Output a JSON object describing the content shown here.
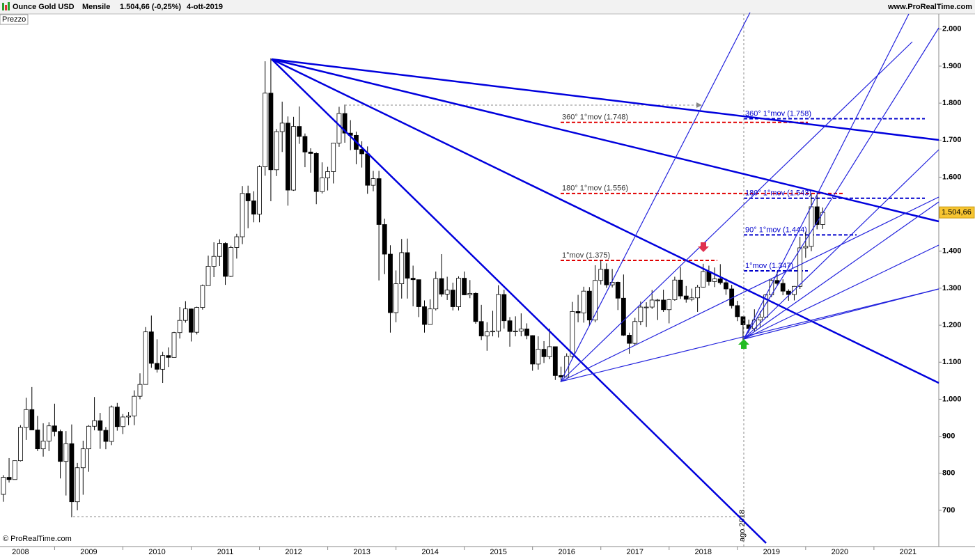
{
  "header": {
    "title": "Ounce Gold USD",
    "period": "Mensile",
    "quote": "1.504,66 (-0,25%)",
    "date": "4-ott-2019",
    "site": "www.ProRealTime.com"
  },
  "panel_label": "Prezzo",
  "copyright": "© ProRealTime.com",
  "marker_label": "ago 2018",
  "chart_data": {
    "type": "candlestick",
    "x": [
      2007.75,
      2007.833,
      2007.917,
      2008,
      2008.083,
      2008.167,
      2008.25,
      2008.333,
      2008.417,
      2008.5,
      2008.583,
      2008.667,
      2008.75,
      2008.833,
      2008.917,
      2009,
      2009.083,
      2009.167,
      2009.25,
      2009.333,
      2009.417,
      2009.5,
      2009.583,
      2009.667,
      2009.75,
      2009.833,
      2009.917,
      2010,
      2010.083,
      2010.167,
      2010.25,
      2010.333,
      2010.417,
      2010.5,
      2010.583,
      2010.667,
      2010.75,
      2010.833,
      2010.917,
      2011,
      2011.083,
      2011.167,
      2011.25,
      2011.333,
      2011.417,
      2011.5,
      2011.583,
      2011.667,
      2011.75,
      2011.833,
      2011.917,
      2012,
      2012.083,
      2012.167,
      2012.25,
      2012.333,
      2012.417,
      2012.5,
      2012.583,
      2012.667,
      2012.75,
      2012.833,
      2012.917,
      2013,
      2013.083,
      2013.167,
      2013.25,
      2013.333,
      2013.417,
      2013.5,
      2013.583,
      2013.667,
      2013.75,
      2013.833,
      2013.917,
      2014,
      2014.083,
      2014.167,
      2014.25,
      2014.333,
      2014.417,
      2014.5,
      2014.583,
      2014.667,
      2014.75,
      2014.833,
      2014.917,
      2015,
      2015.083,
      2015.167,
      2015.25,
      2015.333,
      2015.417,
      2015.5,
      2015.583,
      2015.667,
      2015.75,
      2015.833,
      2015.917,
      2016,
      2016.083,
      2016.167,
      2016.25,
      2016.333,
      2016.417,
      2016.5,
      2016.583,
      2016.667,
      2016.75,
      2016.833,
      2016.917,
      2017,
      2017.083,
      2017.167,
      2017.25,
      2017.333,
      2017.417,
      2017.5,
      2017.583,
      2017.667,
      2017.75,
      2017.833,
      2017.917,
      2018,
      2018.083,
      2018.167,
      2018.25,
      2018.333,
      2018.417,
      2018.5,
      2018.583,
      2018.667,
      2018.75,
      2018.833,
      2018.917,
      2019,
      2019.083,
      2019.167,
      2019.25,
      2019.333,
      2019.417,
      2019.5,
      2019.583,
      2019.667,
      2019.75
    ],
    "open": [
      743,
      789,
      783,
      834,
      924,
      972,
      917,
      866,
      887,
      928,
      913,
      832,
      880,
      723,
      815,
      866,
      927,
      942,
      916,
      886,
      979,
      926,
      952,
      955,
      1008,
      1040,
      1182,
      1097,
      1081,
      1118,
      1113,
      1180,
      1213,
      1244,
      1181,
      1248,
      1307,
      1359,
      1386,
      1421,
      1332,
      1410,
      1439,
      1556,
      1536,
      1500,
      1628,
      1827,
      1620,
      1723,
      1746,
      1565,
      1737,
      1710,
      1668,
      1664,
      1561,
      1598,
      1615,
      1692,
      1772,
      1719,
      1713,
      1675,
      1663,
      1578,
      1596,
      1472,
      1392,
      1234,
      1312,
      1396,
      1327,
      1323,
      1250,
      1202,
      1244,
      1326,
      1284,
      1295,
      1250,
      1327,
      1282,
      1286,
      1210,
      1171,
      1182,
      1184,
      1283,
      1212,
      1183,
      1184,
      1190,
      1172,
      1095,
      1135,
      1115,
      1142,
      1064,
      1060,
      1116,
      1237,
      1233,
      1292,
      1214,
      1321,
      1351,
      1309,
      1316,
      1273,
      1173,
      1151,
      1210,
      1249,
      1249,
      1268,
      1268,
      1242,
      1269,
      1322,
      1279,
      1270,
      1274,
      1303,
      1345,
      1318,
      1325,
      1315,
      1298,
      1253,
      1223,
      1201,
      1191,
      1214,
      1222,
      1282,
      1321,
      1313,
      1292,
      1283,
      1305,
      1409,
      1413,
      1520,
      1472
    ],
    "high": [
      795,
      841,
      834,
      930,
      1004,
      1033,
      955,
      935,
      938,
      988,
      918,
      914,
      932,
      828,
      888,
      930,
      1006,
      963,
      925,
      983,
      990,
      960,
      965,
      1024,
      1070,
      1195,
      1226,
      1162,
      1128,
      1140,
      1182,
      1249,
      1265,
      1245,
      1250,
      1310,
      1388,
      1424,
      1432,
      1424,
      1415,
      1447,
      1576,
      1577,
      1562,
      1632,
      1913,
      1921,
      1730,
      1804,
      1764,
      1763,
      1791,
      1718,
      1678,
      1667,
      1640,
      1628,
      1693,
      1790,
      1796,
      1754,
      1723,
      1697,
      1683,
      1617,
      1617,
      1488,
      1416,
      1348,
      1433,
      1434,
      1361,
      1322,
      1267,
      1270,
      1345,
      1392,
      1331,
      1315,
      1332,
      1345,
      1322,
      1289,
      1255,
      1208,
      1239,
      1308,
      1296,
      1222,
      1224,
      1232,
      1205,
      1173,
      1170,
      1157,
      1191,
      1142,
      1088,
      1124,
      1263,
      1282,
      1304,
      1303,
      1362,
      1375,
      1367,
      1352,
      1318,
      1337,
      1180,
      1220,
      1264,
      1262,
      1295,
      1271,
      1296,
      1271,
      1331,
      1357,
      1306,
      1299,
      1309,
      1366,
      1361,
      1356,
      1365,
      1326,
      1309,
      1266,
      1224,
      1215,
      1243,
      1237,
      1284,
      1326,
      1346,
      1324,
      1297,
      1306,
      1439,
      1453,
      1555,
      1557,
      1518
    ],
    "low": [
      723,
      775,
      784,
      832,
      890,
      920,
      860,
      845,
      860,
      900,
      786,
      740,
      681,
      700,
      742,
      804,
      916,
      866,
      865,
      876,
      915,
      906,
      930,
      930,
      1000,
      1040,
      1085,
      1072,
      1044,
      1087,
      1115,
      1164,
      1207,
      1156,
      1175,
      1242,
      1313,
      1330,
      1360,
      1309,
      1330,
      1380,
      1419,
      1462,
      1478,
      1478,
      1604,
      1535,
      1603,
      1668,
      1523,
      1563,
      1690,
      1627,
      1612,
      1527,
      1556,
      1564,
      1583,
      1682,
      1693,
      1673,
      1635,
      1626,
      1555,
      1562,
      1321,
      1338,
      1180,
      1208,
      1272,
      1272,
      1251,
      1222,
      1180,
      1202,
      1240,
      1277,
      1268,
      1240,
      1240,
      1281,
      1273,
      1204,
      1160,
      1131,
      1170,
      1167,
      1191,
      1142,
      1170,
      1170,
      1162,
      1077,
      1080,
      1098,
      1108,
      1052,
      1046,
      1062,
      1108,
      1208,
      1207,
      1199,
      1208,
      1310,
      1301,
      1302,
      1241,
      1171,
      1123,
      1146,
      1200,
      1195,
      1244,
      1214,
      1236,
      1205,
      1266,
      1271,
      1261,
      1265,
      1236,
      1302,
      1307,
      1303,
      1310,
      1282,
      1245,
      1211,
      1160,
      1180,
      1183,
      1196,
      1221,
      1276,
      1308,
      1281,
      1266,
      1267,
      1298,
      1382,
      1400,
      1459,
      1460
    ],
    "close": [
      789,
      783,
      834,
      924,
      972,
      917,
      866,
      887,
      928,
      913,
      832,
      880,
      723,
      815,
      866,
      927,
      942,
      916,
      886,
      979,
      926,
      952,
      955,
      1008,
      1040,
      1182,
      1097,
      1081,
      1118,
      1113,
      1180,
      1213,
      1244,
      1181,
      1248,
      1307,
      1359,
      1386,
      1421,
      1332,
      1410,
      1439,
      1556,
      1536,
      1500,
      1628,
      1827,
      1620,
      1723,
      1746,
      1565,
      1737,
      1710,
      1668,
      1664,
      1561,
      1598,
      1615,
      1692,
      1772,
      1719,
      1713,
      1675,
      1663,
      1578,
      1596,
      1472,
      1392,
      1234,
      1312,
      1396,
      1327,
      1323,
      1250,
      1202,
      1244,
      1326,
      1284,
      1295,
      1250,
      1327,
      1282,
      1286,
      1210,
      1171,
      1182,
      1184,
      1283,
      1212,
      1183,
      1184,
      1190,
      1172,
      1095,
      1135,
      1115,
      1142,
      1064,
      1060,
      1116,
      1237,
      1233,
      1292,
      1214,
      1321,
      1351,
      1309,
      1316,
      1273,
      1173,
      1151,
      1210,
      1249,
      1249,
      1268,
      1268,
      1242,
      1269,
      1322,
      1279,
      1270,
      1274,
      1303,
      1345,
      1318,
      1325,
      1315,
      1298,
      1253,
      1223,
      1201,
      1191,
      1214,
      1222,
      1282,
      1321,
      1313,
      1292,
      1283,
      1305,
      1409,
      1413,
      1520,
      1472,
      1504.66
    ],
    "up_color": "#ffffff",
    "down_color": "#000000",
    "xlim": [
      2007.7,
      2021.45
    ],
    "xticks": [
      2008,
      2009,
      2010,
      2011,
      2012,
      2013,
      2014,
      2015,
      2016,
      2017,
      2018,
      2019,
      2020,
      2021
    ],
    "ylim": [
      602,
      2041
    ],
    "yticks": [
      700,
      800,
      900,
      {
        "value": 1000,
        "label": "1.000"
      },
      {
        "value": 1100,
        "label": "1.100"
      },
      {
        "value": 1200,
        "label": "1.200"
      },
      {
        "value": 1300,
        "label": "1.300"
      },
      {
        "value": 1400,
        "label": "1.400"
      },
      {
        "value": 1500,
        "label": "1.500"
      },
      {
        "value": 1600,
        "label": "1.600"
      },
      {
        "value": 1700,
        "label": "1.700"
      },
      {
        "value": 1800,
        "label": "1.800"
      },
      {
        "value": 1900,
        "label": "1.900"
      },
      {
        "value": 2000,
        "label": "2.000"
      }
    ],
    "last_price": {
      "value": 1504.66,
      "label": "1.504,66"
    },
    "levels": [
      {
        "label": "360° 1°mov (1.748)",
        "value": 1748,
        "color": "#e00000"
      },
      {
        "label": "180° 1°mov (1.556)",
        "value": 1556,
        "color": "#e00000"
      },
      {
        "label": "1°mov (1.375)",
        "value": 1375,
        "color": "#e00000"
      },
      {
        "label": "360° 1°mov (1.758)",
        "value": 1758,
        "color": "#0000cc"
      },
      {
        "label": "180° 1°mov (1.543)",
        "value": 1543,
        "color": "#0000cc"
      },
      {
        "label": "90° 1°mov (1.444)",
        "value": 1444,
        "color": "#0000cc"
      },
      {
        "label": "1°mov (1.347)",
        "value": 1347,
        "color": "#0000cc"
      }
    ]
  }
}
